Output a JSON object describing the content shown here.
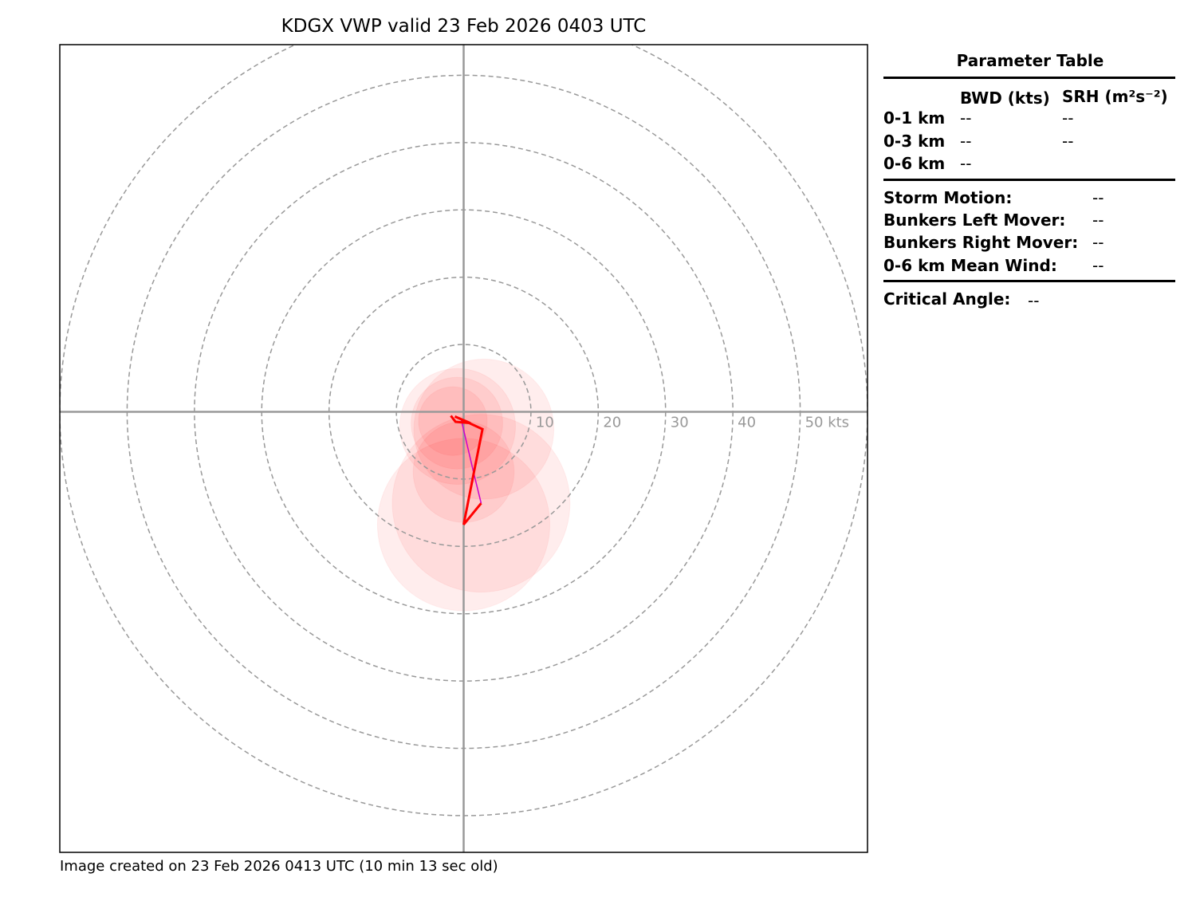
{
  "title": "KDGX VWP valid 23 Feb 2026 0403 UTC",
  "footer": "Image created on 23 Feb 2026 0413 UTC (10 min 13 sec old)",
  "parameter_table": {
    "title": "Parameter Table",
    "col_bwd": "BWD (kts)",
    "col_srh": "SRH (m²s⁻²)",
    "rows": [
      {
        "label": "0-1 km",
        "bwd": "--",
        "srh": "--"
      },
      {
        "label": "0-3 km",
        "bwd": "--",
        "srh": "--"
      },
      {
        "label": "0-6 km",
        "bwd": "--",
        "srh": ""
      }
    ],
    "motions": [
      {
        "label": "Storm Motion:",
        "value": "--"
      },
      {
        "label": "Bunkers Left Mover:",
        "value": "--"
      },
      {
        "label": "Bunkers Right Mover:",
        "value": "--"
      },
      {
        "label": "0-6 km Mean Wind:",
        "value": "--"
      }
    ],
    "critical_angle_label": "Critical Angle:",
    "critical_angle_value": "--"
  },
  "chart_data": {
    "type": "hodograph",
    "units": "kts",
    "ring_labels": [
      "10",
      "20",
      "30",
      "40",
      "50 kts"
    ],
    "ring_values": [
      10,
      20,
      30,
      40,
      50,
      60
    ],
    "xlim": [
      -60,
      60
    ],
    "ylim": [
      -66,
      55
    ],
    "grid": true,
    "colors": {
      "axis": "#999999",
      "ring": "#999999",
      "hodo_line": "#ff0000",
      "mean_line": "#cc00cc",
      "error_circle": "#ff0000"
    },
    "hodo_points": [
      {
        "u": -1.9,
        "v": -0.6
      },
      {
        "u": -1.2,
        "v": -1.5
      },
      {
        "u": 1.0,
        "v": -1.7
      },
      {
        "u": -1.3,
        "v": -0.7
      },
      {
        "u": 2.8,
        "v": -2.6
      },
      {
        "u": 1.5,
        "v": -9.2
      },
      {
        "u": 0.0,
        "v": -16.9
      },
      {
        "u": 2.6,
        "v": -13.7
      }
    ],
    "mean_line_points": [
      {
        "u": -0.4,
        "v": -1.0
      },
      {
        "u": 1.5,
        "v": -9.2
      },
      {
        "u": 2.6,
        "v": -13.7
      }
    ],
    "error_circles": [
      {
        "u": -1.6,
        "v": -1.4,
        "r": 5.1
      },
      {
        "u": -1.0,
        "v": -1.7,
        "r": 6.8
      },
      {
        "u": -0.9,
        "v": -2.2,
        "r": 8.6
      },
      {
        "u": 3.0,
        "v": -2.6,
        "r": 10.4
      },
      {
        "u": 0.0,
        "v": -9.0,
        "r": 7.5
      },
      {
        "u": 2.6,
        "v": -13.7,
        "r": 13.2
      },
      {
        "u": 0.0,
        "v": -16.9,
        "r": 12.8
      }
    ]
  }
}
